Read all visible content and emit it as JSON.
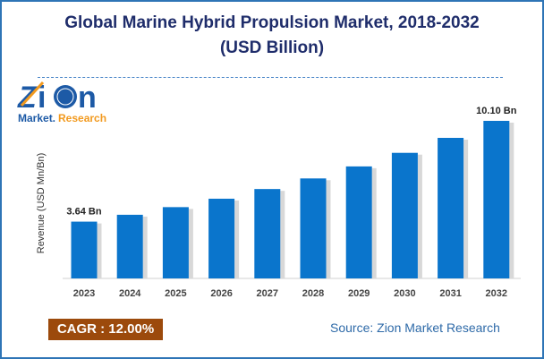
{
  "chart_data": {
    "type": "bar",
    "title": "Global Marine Hybrid Propulsion Market, 2018-2032",
    "subtitle": "(USD Billion)",
    "ylabel": "Revenue (USD Mn/Bn)",
    "xlabel": "",
    "categories": [
      "2023",
      "2024",
      "2025",
      "2026",
      "2027",
      "2028",
      "2029",
      "2030",
      "2031",
      "2032"
    ],
    "values": [
      3.64,
      4.08,
      4.57,
      5.11,
      5.73,
      6.41,
      7.18,
      8.05,
      9.01,
      10.1
    ],
    "data_labels": {
      "2023": "3.64 Bn",
      "2032": "10.10 Bn"
    },
    "ylim": [
      0,
      10.1
    ],
    "grid": false,
    "bar_color": "#0a75cc"
  },
  "logo": {
    "text_top": "Zion",
    "text_bottom_1": "Market",
    "text_bottom_2": "Research"
  },
  "cagr": "CAGR :  12.00%",
  "source": "Source: Zion Market Research"
}
